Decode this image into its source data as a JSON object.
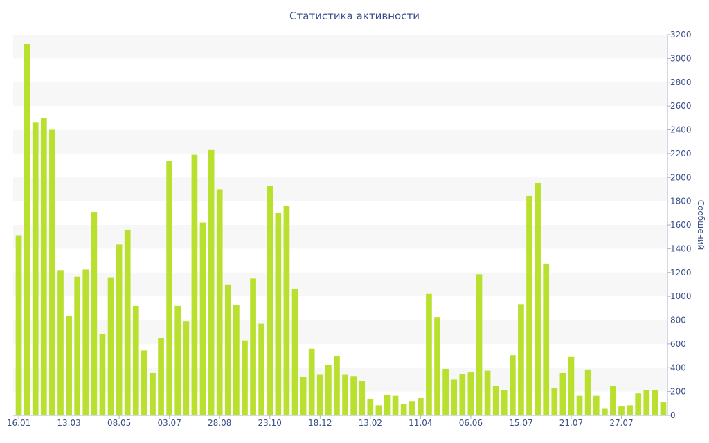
{
  "chart_data": {
    "type": "bar",
    "title": "Статистика активности",
    "ylabel": "Сообщений",
    "ylim": [
      0,
      3200
    ],
    "yticks": [
      0,
      200,
      400,
      600,
      800,
      1000,
      1200,
      1400,
      1600,
      1800,
      2000,
      2200,
      2400,
      2600,
      2800,
      3000,
      3200
    ],
    "xtick_labels": [
      "16.01",
      "13.03",
      "08.05",
      "03.07",
      "28.08",
      "23.10",
      "18.12",
      "13.02",
      "11.04",
      "06.06",
      "15.07",
      "21.07",
      "27.07"
    ],
    "xtick_bar_index": [
      0,
      6,
      12,
      18,
      24,
      30,
      36,
      42,
      48,
      54,
      60,
      66,
      72
    ],
    "grid": "horizontal bands",
    "bar_color": "#b9e02e",
    "values": [
      1510,
      3120,
      2465,
      2500,
      2400,
      1220,
      835,
      1165,
      1225,
      1710,
      685,
      1160,
      1435,
      1560,
      920,
      545,
      355,
      650,
      2140,
      920,
      790,
      2190,
      1620,
      2235,
      1900,
      1095,
      930,
      630,
      1150,
      770,
      1930,
      1705,
      1760,
      1065,
      320,
      560,
      340,
      420,
      495,
      340,
      330,
      290,
      140,
      85,
      175,
      165,
      95,
      115,
      145,
      1020,
      825,
      390,
      300,
      345,
      360,
      1185,
      375,
      250,
      215,
      505,
      935,
      1845,
      1955,
      1275,
      230,
      355,
      490,
      165,
      385,
      165,
      55,
      250,
      75,
      85,
      185,
      210,
      215,
      110
    ]
  }
}
